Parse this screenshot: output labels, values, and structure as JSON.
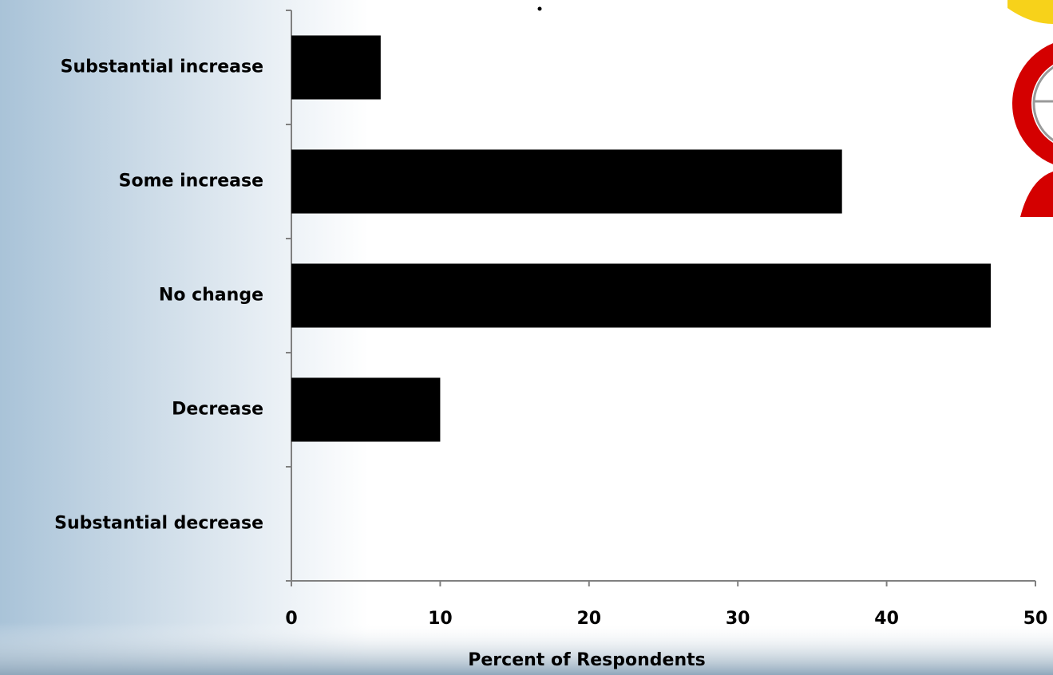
{
  "chart_data": {
    "type": "bar",
    "orientation": "horizontal",
    "categories": [
      "Substantial increase",
      "Some increase",
      "No change",
      "Decrease",
      "Substantial decrease"
    ],
    "values": [
      6,
      37,
      47,
      10,
      0
    ],
    "color": "#000000",
    "x_label": "Percent of Respondents",
    "xlim": [
      0,
      50
    ],
    "xticks": [
      0,
      10,
      20,
      30,
      40,
      50
    ],
    "grid": false
  }
}
